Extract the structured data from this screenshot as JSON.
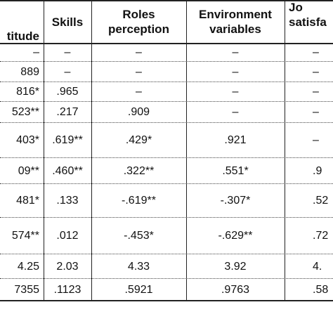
{
  "table": {
    "header": [
      [
        "titude"
      ],
      [
        "Skills"
      ],
      [
        "Roles",
        "perception"
      ],
      [
        "Environment",
        "variables"
      ],
      [
        "Jo",
        "satisfa"
      ]
    ],
    "rows": [
      [
        "–",
        "–",
        "–",
        "–",
        "–"
      ],
      [
        "889",
        "–",
        "–",
        "–",
        "–"
      ],
      [
        "816*",
        ".965",
        "–",
        "–",
        "–"
      ],
      [
        "523**",
        ".217",
        ".909",
        "–",
        "–"
      ],
      [
        "403*",
        ".619**",
        ".429*",
        ".921",
        "–"
      ],
      [
        "09**",
        ".460**",
        ".322**",
        ".551*",
        ".9"
      ],
      [
        "481*",
        ".133",
        "-.619**",
        "-.307*",
        ".52"
      ],
      [
        "574**",
        ".012",
        "-.453*",
        "-.629**",
        ".72"
      ],
      [
        "4.25",
        "2.03",
        "4.33",
        "3.92",
        "4."
      ],
      [
        "7355",
        ".1123",
        ".5921",
        ".9763",
        ".58"
      ]
    ]
  }
}
